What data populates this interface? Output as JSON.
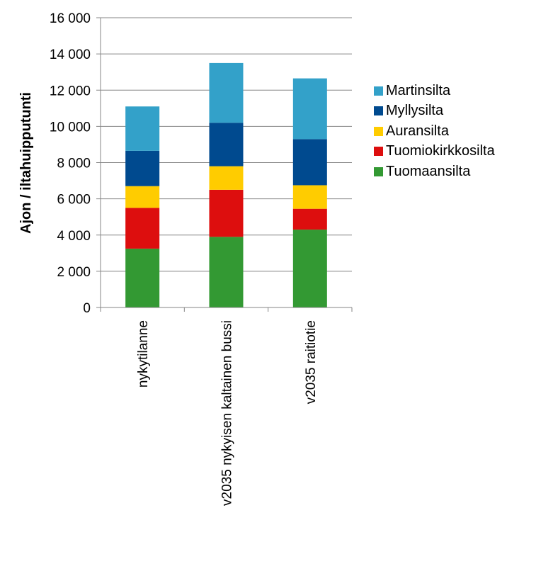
{
  "chart_data": {
    "type": "bar",
    "stacked": true,
    "categories": [
      "nykytilanne",
      "v2035 nykyisen kaltainen bussi",
      "v2035 raitiotie"
    ],
    "series": [
      {
        "name": "Tuomaansilta",
        "color": "#339933",
        "values": [
          3250,
          3900,
          4300
        ]
      },
      {
        "name": "Tuomiokirkkosilta",
        "color": "#dd0e0e",
        "values": [
          2250,
          2600,
          1150
        ]
      },
      {
        "name": "Auransilta",
        "color": "#ffcc00",
        "values": [
          1200,
          1300,
          1300
        ]
      },
      {
        "name": "Myllysilta",
        "color": "#004a8f",
        "values": [
          1950,
          2400,
          2550
        ]
      },
      {
        "name": "Martinsilta",
        "color": "#33a1c9",
        "values": [
          2450,
          3300,
          3350
        ]
      }
    ],
    "ylabel": "Ajon / iltahuipputunti",
    "xlabel": "",
    "ylim": [
      0,
      16000
    ],
    "yticks": [
      0,
      2000,
      4000,
      6000,
      8000,
      10000,
      12000,
      14000,
      16000
    ],
    "ytick_labels": [
      "0",
      "2 000",
      "4 000",
      "6 000",
      "8 000",
      "10 000",
      "12 000",
      "14 000",
      "16 000"
    ],
    "grid": true,
    "legend_position": "right"
  }
}
